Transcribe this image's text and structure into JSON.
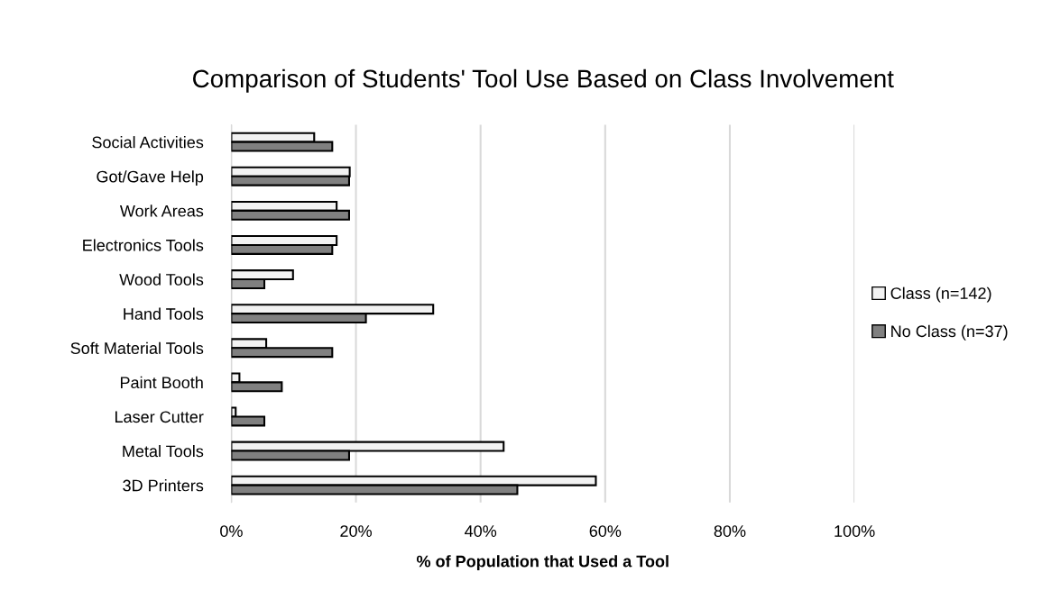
{
  "chart_data": {
    "type": "bar",
    "orientation": "horizontal",
    "title": "Comparison of Students' Tool Use Based on Class Involvement",
    "xlabel": "% of Population that Used a Tool",
    "categories": [
      "Social Activities",
      "Got/Gave Help",
      "Work Areas",
      "Electronics Tools",
      "Wood Tools",
      "Hand Tools",
      "Soft Material Tools",
      "Paint Booth",
      "Laser Cutter",
      "Metal Tools",
      "3D Printers"
    ],
    "series": [
      {
        "name": "Class (n=142)",
        "color": "#f2f2f2",
        "values": [
          13.3,
          19.0,
          16.9,
          16.9,
          9.9,
          32.4,
          5.6,
          1.3,
          0.7,
          43.7,
          58.5
        ]
      },
      {
        "name": "No Class (n=37)",
        "color": "#808080",
        "values": [
          16.2,
          18.9,
          18.9,
          16.2,
          5.3,
          21.6,
          16.2,
          8.1,
          5.3,
          18.9,
          45.9
        ]
      }
    ],
    "xlim": [
      0,
      100
    ],
    "xticks": [
      {
        "value": 0,
        "label": "0%"
      },
      {
        "value": 20,
        "label": "20%"
      },
      {
        "value": 40,
        "label": "40%"
      },
      {
        "value": 60,
        "label": "60%"
      },
      {
        "value": 80,
        "label": "80%"
      },
      {
        "value": 100,
        "label": "100%"
      }
    ],
    "grid": "x",
    "legend": "right"
  }
}
